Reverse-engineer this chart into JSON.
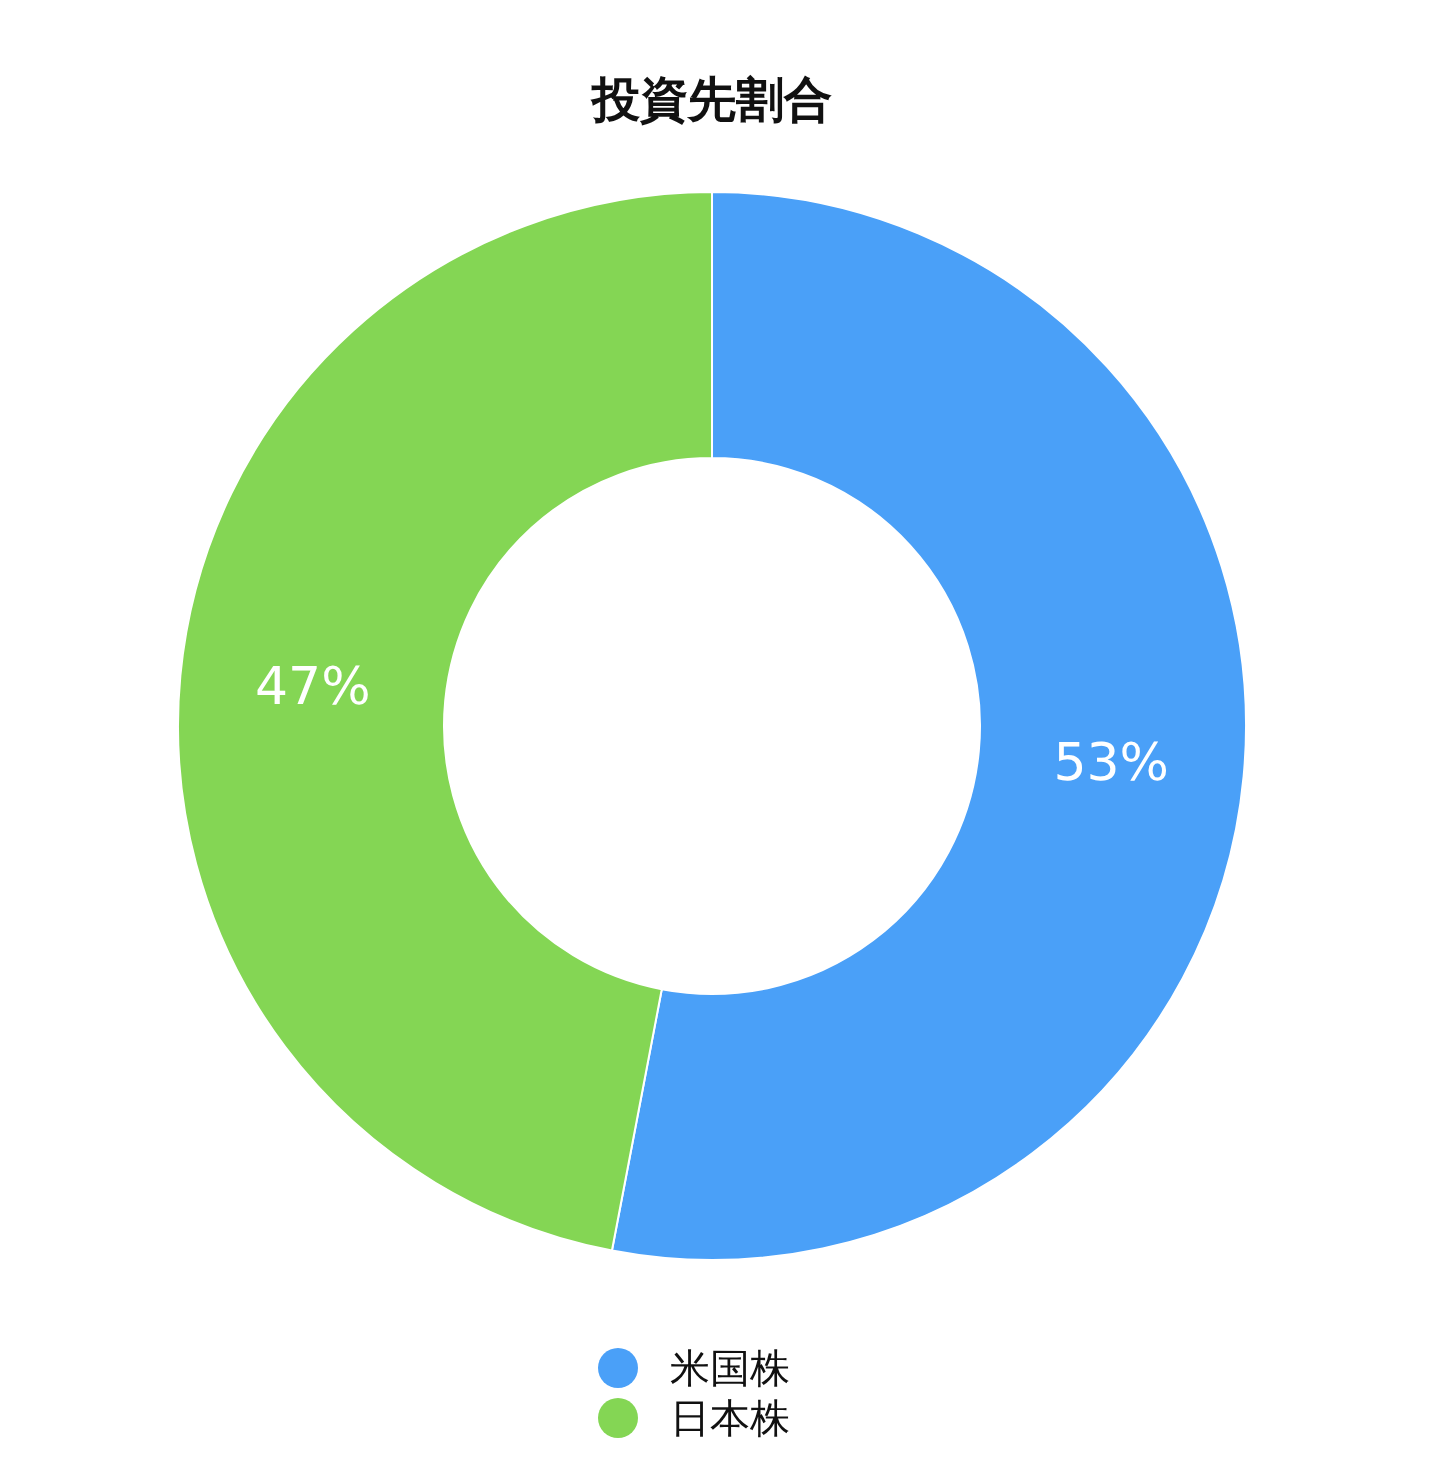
{
  "chart_data": {
    "type": "donut",
    "title": "投資先割合",
    "categories": [
      "米国株",
      "日本株"
    ],
    "values": [
      53,
      47
    ],
    "colors": [
      "#4aa0f8",
      "#84d654"
    ],
    "value_labels": [
      "53%",
      "47%"
    ],
    "legend": "bottom"
  }
}
